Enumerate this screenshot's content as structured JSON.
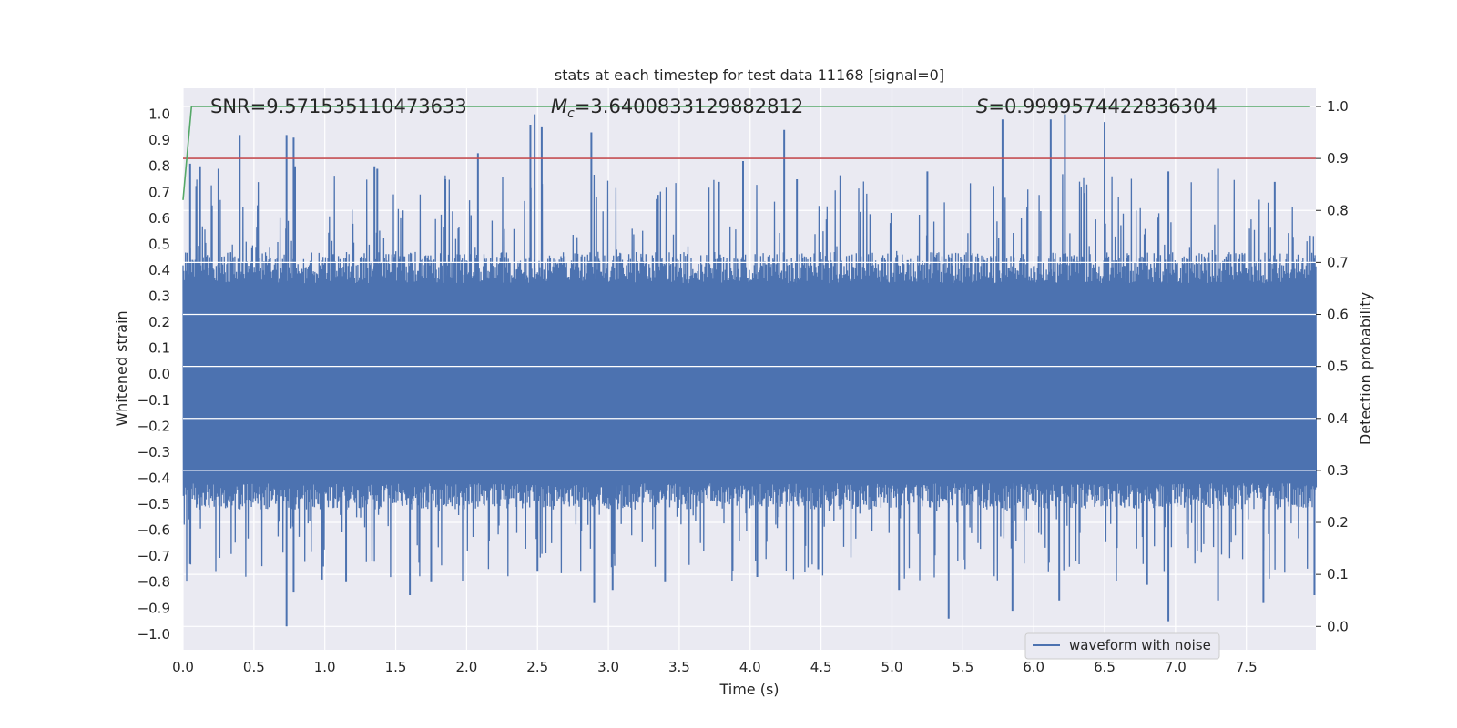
{
  "chart_data": {
    "type": "line",
    "title": "stats at each timestep for test data 11168 [signal=0]",
    "xlabel": "Time (s)",
    "ylabel": "Whitened strain",
    "ylabel_right": "Detection probability",
    "xlim": [
      0.0,
      7.99
    ],
    "ylim": [
      -1.06,
      1.1
    ],
    "ylim_right": [
      -0.045,
      1.035
    ],
    "x_ticks": [
      "0.0",
      "0.5",
      "1.0",
      "1.5",
      "2.0",
      "2.5",
      "3.0",
      "3.5",
      "4.0",
      "4.5",
      "5.0",
      "5.5",
      "6.0",
      "6.5",
      "7.0",
      "7.5"
    ],
    "y_ticks": [
      "1.0",
      "0.9",
      "0.8",
      "0.7",
      "0.6",
      "0.5",
      "0.4",
      "0.3",
      "0.2",
      "0.1",
      "0.0",
      "-0.1",
      "-0.2",
      "-0.3",
      "-0.4",
      "-0.5",
      "-0.6",
      "-0.7",
      "-0.8",
      "-0.9",
      "-1.0"
    ],
    "y_ticks_right": [
      "1.0",
      "0.9",
      "0.8",
      "0.7",
      "0.6",
      "0.5",
      "0.4",
      "0.3",
      "0.2",
      "0.1",
      "0.0"
    ],
    "stats": {
      "snr": "SNR=9.571535110473633",
      "mc_symbol": "M",
      "mc_sub": "c",
      "mc_value": "=3.6400833129882812",
      "s_symbol": "S",
      "s_value": "=0.9999574422836304"
    },
    "series": [
      {
        "name": "waveform with noise",
        "axis": "left",
        "color": "#4c72b0",
        "style": "noise",
        "typical_range": [
          -0.5,
          0.4
        ],
        "peaks_up": [
          [
            0.05,
            0.81
          ],
          [
            0.12,
            0.8
          ],
          [
            0.25,
            0.79
          ],
          [
            0.4,
            0.92
          ],
          [
            0.73,
            0.92
          ],
          [
            0.78,
            0.91
          ],
          [
            0.79,
            0.8
          ],
          [
            1.35,
            0.8
          ],
          [
            1.37,
            0.79
          ],
          [
            1.55,
            0.63
          ],
          [
            1.85,
            0.75
          ],
          [
            2.08,
            0.85
          ],
          [
            2.45,
            0.96
          ],
          [
            2.48,
            1.0
          ],
          [
            2.53,
            0.95
          ],
          [
            2.88,
            0.93
          ],
          [
            3.35,
            0.69
          ],
          [
            3.78,
            0.74
          ],
          [
            3.95,
            0.82
          ],
          [
            4.24,
            0.94
          ],
          [
            4.33,
            0.75
          ],
          [
            5.25,
            0.78
          ],
          [
            5.78,
            0.98
          ],
          [
            6.12,
            0.98
          ],
          [
            6.22,
            1.0
          ],
          [
            6.5,
            0.97
          ],
          [
            6.95,
            0.78
          ],
          [
            7.3,
            0.79
          ],
          [
            7.7,
            0.74
          ]
        ],
        "peaks_down": [
          [
            0.05,
            -0.73
          ],
          [
            0.73,
            -0.97
          ],
          [
            0.78,
            -0.84
          ],
          [
            0.98,
            -0.79
          ],
          [
            1.15,
            -0.8
          ],
          [
            1.6,
            -0.85
          ],
          [
            1.75,
            -0.8
          ],
          [
            2.5,
            -0.76
          ],
          [
            2.9,
            -0.88
          ],
          [
            3.03,
            -0.83
          ],
          [
            3.4,
            -0.8
          ],
          [
            4.05,
            -0.78
          ],
          [
            4.48,
            -0.75
          ],
          [
            5.05,
            -0.83
          ],
          [
            5.4,
            -0.94
          ],
          [
            5.85,
            -0.91
          ],
          [
            6.18,
            -0.87
          ],
          [
            6.8,
            -0.81
          ],
          [
            6.95,
            -0.95
          ],
          [
            7.3,
            -0.87
          ],
          [
            7.62,
            -0.88
          ],
          [
            7.98,
            -0.85
          ]
        ]
      },
      {
        "name": "detection probability",
        "axis": "right",
        "color": "#55a868",
        "x": [
          0.0,
          0.06,
          7.95
        ],
        "values": [
          0.82,
          1.0,
          1.0
        ]
      },
      {
        "name": "threshold",
        "axis": "right",
        "color": "#c44e52",
        "x": [
          0.0,
          7.99
        ],
        "values": [
          0.9,
          0.9
        ]
      }
    ],
    "legend": {
      "entries": [
        "waveform with noise"
      ],
      "placement": "lower-right"
    },
    "grid": true
  }
}
